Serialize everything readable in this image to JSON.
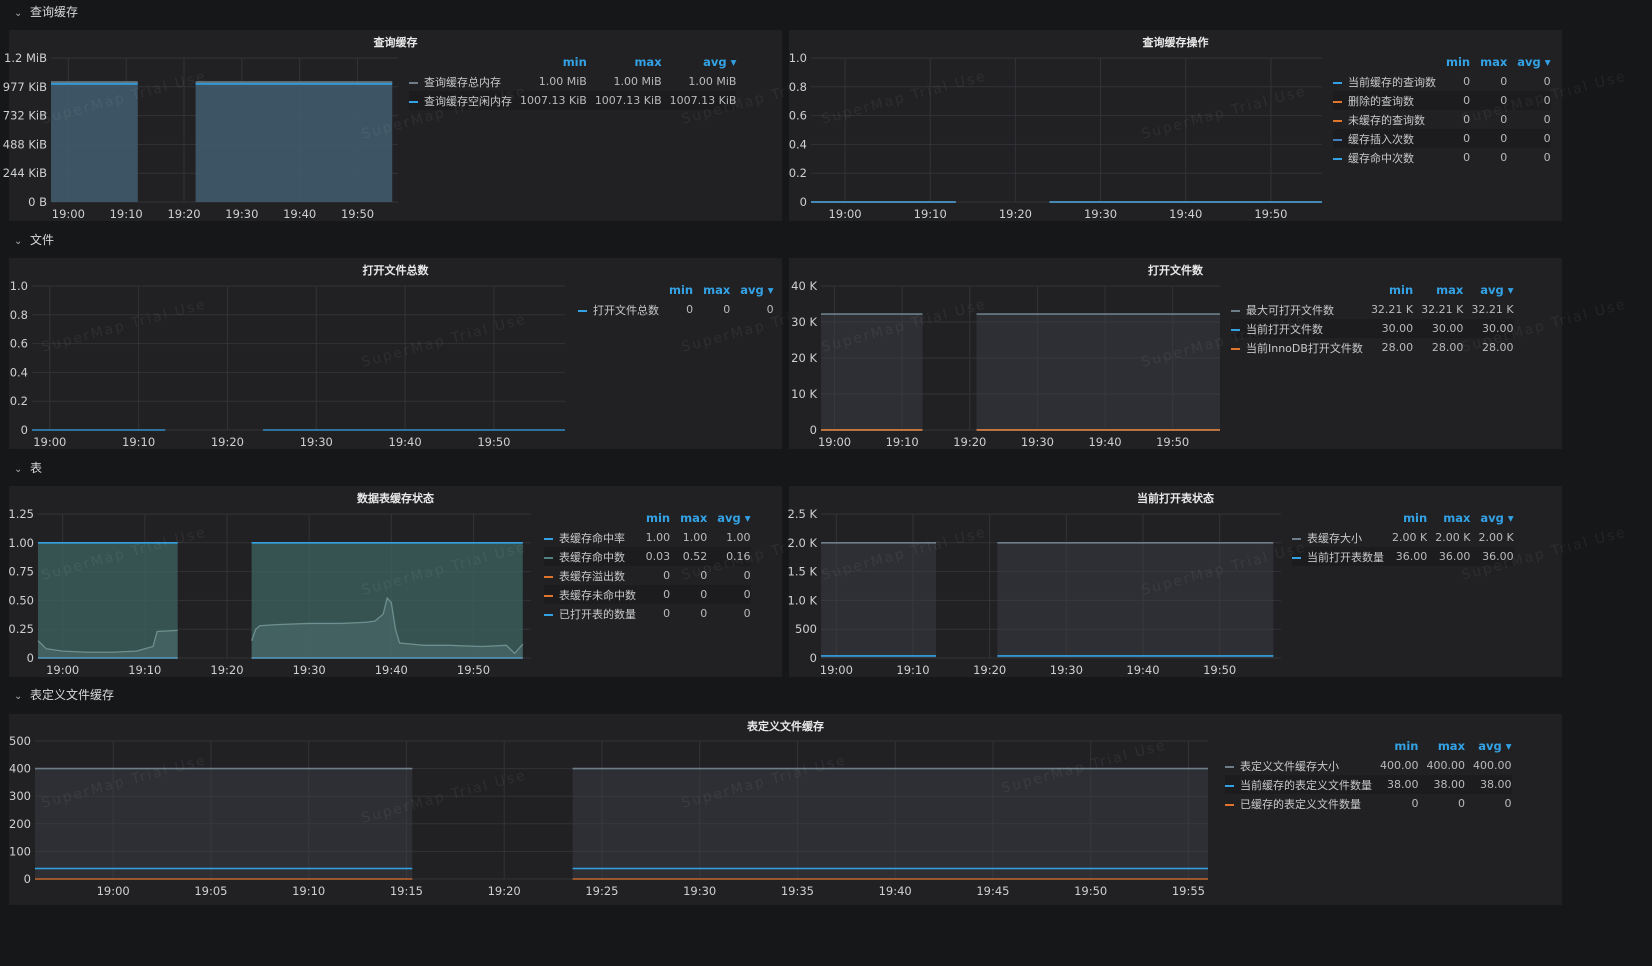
{
  "colors": {
    "blue": "#33a2e5",
    "teal": "#508080",
    "orange": "#e0752d",
    "grey": "#6d7e8a",
    "navy": "#447ebc",
    "gridline": "#333336"
  },
  "watermark": "SuperMap Trial Use",
  "rows": [
    {
      "title": "查询缓存"
    },
    {
      "title": "文件"
    },
    {
      "title": "表"
    },
    {
      "title": "表定义文件缓存"
    }
  ],
  "legend_headers": {
    "min": "min",
    "max": "max",
    "avg": "avg ▾"
  },
  "panels": {
    "qc_mem": {
      "title": "查询缓存",
      "yticks": [
        "0 B",
        "244 KiB",
        "488 KiB",
        "732 KiB",
        "977 KiB",
        "1.2 MiB"
      ],
      "xticks": [
        "19:00",
        "19:10",
        "19:20",
        "19:30",
        "19:40",
        "19:50"
      ],
      "legend": [
        {
          "name": "查询缓存总内存",
          "color": "#6d7e8a",
          "min": "1.00 MiB",
          "max": "1.00 MiB",
          "avg": "1.00 MiB"
        },
        {
          "name": "查询缓存空闲内存",
          "color": "#33a2e5",
          "min": "1007.13 KiB",
          "max": "1007.13 KiB",
          "avg": "1007.13 KiB"
        }
      ]
    },
    "qc_ops": {
      "title": "查询缓存操作",
      "yticks": [
        "0",
        "0.2",
        "0.4",
        "0.6",
        "0.8",
        "1.0"
      ],
      "xticks": [
        "19:00",
        "19:10",
        "19:20",
        "19:30",
        "19:40",
        "19:50"
      ],
      "legend": [
        {
          "name": "当前缓存的查询数",
          "color": "#33a2e5",
          "min": "0",
          "max": "0",
          "avg": "0"
        },
        {
          "name": "删除的查询数",
          "color": "#e0752d",
          "min": "0",
          "max": "0",
          "avg": "0"
        },
        {
          "name": "未缓存的查询数",
          "color": "#e0752d",
          "min": "0",
          "max": "0",
          "avg": "0"
        },
        {
          "name": "缓存插入次数",
          "color": "#447ebc",
          "min": "0",
          "max": "0",
          "avg": "0"
        },
        {
          "name": "缓存命中次数",
          "color": "#33a2e5",
          "min": "0",
          "max": "0",
          "avg": "0"
        }
      ]
    },
    "files_total": {
      "title": "打开文件总数",
      "yticks": [
        "0",
        "0.2",
        "0.4",
        "0.6",
        "0.8",
        "1.0"
      ],
      "xticks": [
        "19:00",
        "19:10",
        "19:20",
        "19:30",
        "19:40",
        "19:50"
      ],
      "legend": [
        {
          "name": "打开文件总数",
          "color": "#33a2e5",
          "min": "0",
          "max": "0",
          "avg": "0"
        }
      ]
    },
    "files_open": {
      "title": "打开文件数",
      "yticks": [
        "0",
        "10 K",
        "20 K",
        "30 K",
        "40 K"
      ],
      "xticks": [
        "19:00",
        "19:10",
        "19:20",
        "19:30",
        "19:40",
        "19:50"
      ],
      "legend": [
        {
          "name": "最大可打开文件数",
          "color": "#6d7e8a",
          "min": "32.21 K",
          "max": "32.21 K",
          "avg": "32.21 K"
        },
        {
          "name": "当前打开文件数",
          "color": "#33a2e5",
          "min": "30.00",
          "max": "30.00",
          "avg": "30.00"
        },
        {
          "name": "当前InnoDB打开文件数",
          "color": "#e0752d",
          "min": "28.00",
          "max": "28.00",
          "avg": "28.00"
        }
      ]
    },
    "tbl_cache": {
      "title": "数据表缓存状态",
      "yticks": [
        "0",
        "0.25",
        "0.50",
        "0.75",
        "1.00",
        "1.25"
      ],
      "xticks": [
        "19:00",
        "19:10",
        "19:20",
        "19:30",
        "19:40",
        "19:50"
      ],
      "legend": [
        {
          "name": "表缓存命中率",
          "color": "#33a2e5",
          "min": "1.00",
          "max": "1.00",
          "avg": "1.00"
        },
        {
          "name": "表缓存命中数",
          "color": "#508080",
          "min": "0.03",
          "max": "0.52",
          "avg": "0.16"
        },
        {
          "name": "表缓存溢出数",
          "color": "#e0752d",
          "min": "0",
          "max": "0",
          "avg": "0"
        },
        {
          "name": "表缓存未命中数",
          "color": "#e0752d",
          "min": "0",
          "max": "0",
          "avg": "0"
        },
        {
          "name": "已打开表的数量",
          "color": "#33a2e5",
          "min": "0",
          "max": "0",
          "avg": "0"
        }
      ]
    },
    "tbl_open": {
      "title": "当前打开表状态",
      "yticks": [
        "0",
        "500",
        "1.0 K",
        "1.5 K",
        "2.0 K",
        "2.5 K"
      ],
      "xticks": [
        "19:00",
        "19:10",
        "19:20",
        "19:30",
        "19:40",
        "19:50"
      ],
      "legend": [
        {
          "name": "表缓存大小",
          "color": "#6d7e8a",
          "min": "2.00 K",
          "max": "2.00 K",
          "avg": "2.00 K"
        },
        {
          "name": "当前打开表数量",
          "color": "#33a2e5",
          "min": "36.00",
          "max": "36.00",
          "avg": "36.00"
        }
      ]
    },
    "tdef": {
      "title": "表定义文件缓存",
      "yticks": [
        "0",
        "100",
        "200",
        "300",
        "400",
        "500"
      ],
      "xticks": [
        "19:00",
        "19:05",
        "19:10",
        "19:15",
        "19:20",
        "19:25",
        "19:30",
        "19:35",
        "19:40",
        "19:45",
        "19:50",
        "19:55"
      ],
      "legend": [
        {
          "name": "表定义文件缓存大小",
          "color": "#6d7e8a",
          "min": "400.00",
          "max": "400.00",
          "avg": "400.00"
        },
        {
          "name": "当前缓存的表定义文件数量",
          "color": "#33a2e5",
          "min": "38.00",
          "max": "38.00",
          "avg": "38.00"
        },
        {
          "name": "已缓存的表定义文件数量",
          "color": "#e0752d",
          "min": "0",
          "max": "0",
          "avg": "0"
        }
      ]
    }
  },
  "chart_data": [
    {
      "id": "qc_mem",
      "type": "area",
      "title": "查询缓存",
      "ylim": [
        0,
        1.2
      ],
      "y_unit": "MiB",
      "x_range": [
        "18:57",
        "19:57"
      ],
      "segments": [
        [
          "18:57",
          "19:12"
        ],
        [
          "19:22",
          "19:56"
        ]
      ],
      "series": [
        {
          "name": "查询缓存总内存",
          "value": 1.0
        },
        {
          "name": "查询缓存空闲内存",
          "value": 0.9835
        }
      ]
    },
    {
      "id": "qc_ops",
      "type": "line",
      "title": "查询缓存操作",
      "ylim": [
        0,
        1.0
      ],
      "x_range": [
        "18:56",
        "19:56"
      ],
      "segments": [
        [
          "18:56",
          "19:13"
        ],
        [
          "19:24",
          "19:56"
        ]
      ],
      "series": [
        {
          "name": "当前缓存的查询数",
          "value": 0
        },
        {
          "name": "删除的查询数",
          "value": 0
        },
        {
          "name": "未缓存的查询数",
          "value": 0
        },
        {
          "name": "缓存插入次数",
          "value": 0
        },
        {
          "name": "缓存命中次数",
          "value": 0
        }
      ]
    },
    {
      "id": "files_total",
      "type": "line",
      "title": "打开文件总数",
      "ylim": [
        0,
        1.0
      ],
      "x_range": [
        "18:58",
        "19:58"
      ],
      "segments": [
        [
          "18:58",
          "19:13"
        ],
        [
          "19:24",
          "19:58"
        ]
      ],
      "series": [
        {
          "name": "打开文件总数",
          "value": 0
        }
      ]
    },
    {
      "id": "files_open",
      "type": "area",
      "title": "打开文件数",
      "ylim": [
        0,
        40000
      ],
      "x_range": [
        "18:58",
        "19:57"
      ],
      "segments": [
        [
          "18:58",
          "19:13"
        ],
        [
          "19:21",
          "19:57"
        ]
      ],
      "series": [
        {
          "name": "最大可打开文件数",
          "value": 32210
        },
        {
          "name": "当前打开文件数",
          "value": 30
        },
        {
          "name": "当前InnoDB打开文件数",
          "value": 28
        }
      ]
    },
    {
      "id": "tbl_cache",
      "type": "area",
      "title": "数据表缓存状态",
      "ylim": [
        0,
        1.25
      ],
      "x_range": [
        "18:57",
        "19:57"
      ],
      "segments": [
        [
          "18:57",
          "19:14"
        ],
        [
          "19:23",
          "19:56"
        ]
      ],
      "series": [
        {
          "name": "表缓存命中率",
          "value": 1.0
        },
        {
          "name": "表缓存命中数",
          "points": [
            [
              "18:57",
              0.15
            ],
            [
              "18:58",
              0.08
            ],
            [
              "19:00",
              0.06
            ],
            [
              "19:03",
              0.05
            ],
            [
              "19:06",
              0.05
            ],
            [
              "19:09",
              0.06
            ],
            [
              "19:10",
              0.08
            ],
            [
              "19:11",
              0.1
            ],
            [
              "19:11.5",
              0.23
            ],
            [
              "19:14",
              0.24
            ],
            [
              "19:23",
              0.15
            ],
            [
              "19:23.5",
              0.25
            ],
            [
              "19:24",
              0.28
            ],
            [
              "19:26",
              0.29
            ],
            [
              "19:30",
              0.3
            ],
            [
              "19:34",
              0.3
            ],
            [
              "19:37",
              0.31
            ],
            [
              "19:38",
              0.32
            ],
            [
              "19:39",
              0.38
            ],
            [
              "19:39.5",
              0.52
            ],
            [
              "19:40",
              0.48
            ],
            [
              "19:40.5",
              0.25
            ],
            [
              "19:41",
              0.13
            ],
            [
              "19:44",
              0.11
            ],
            [
              "19:47",
              0.11
            ],
            [
              "19:51",
              0.1
            ],
            [
              "19:54",
              0.11
            ],
            [
              "19:55",
              0.04
            ],
            [
              "19:56",
              0.12
            ]
          ]
        },
        {
          "name": "表缓存溢出数",
          "value": 0
        },
        {
          "name": "表缓存未命中数",
          "value": 0
        },
        {
          "name": "已打开表的数量",
          "value": 0
        }
      ]
    },
    {
      "id": "tbl_open",
      "type": "area",
      "title": "当前打开表状态",
      "ylim": [
        0,
        2500
      ],
      "x_range": [
        "18:58",
        "19:58"
      ],
      "segments": [
        [
          "18:58",
          "19:13"
        ],
        [
          "19:21",
          "19:57"
        ]
      ],
      "series": [
        {
          "name": "表缓存大小",
          "value": 2000
        },
        {
          "name": "当前打开表数量",
          "value": 36
        }
      ]
    },
    {
      "id": "tdef",
      "type": "area",
      "title": "表定义文件缓存",
      "ylim": [
        0,
        500
      ],
      "x_range": [
        "18:56",
        "19:56"
      ],
      "segments": [
        [
          "18:56",
          "19:15.3"
        ],
        [
          "19:23.5",
          "19:56"
        ]
      ],
      "series": [
        {
          "name": "表定义文件缓存大小",
          "value": 400
        },
        {
          "name": "当前缓存的表定义文件数量",
          "value": 38
        },
        {
          "name": "已缓存的表定义文件数量",
          "value": 0
        }
      ]
    }
  ]
}
